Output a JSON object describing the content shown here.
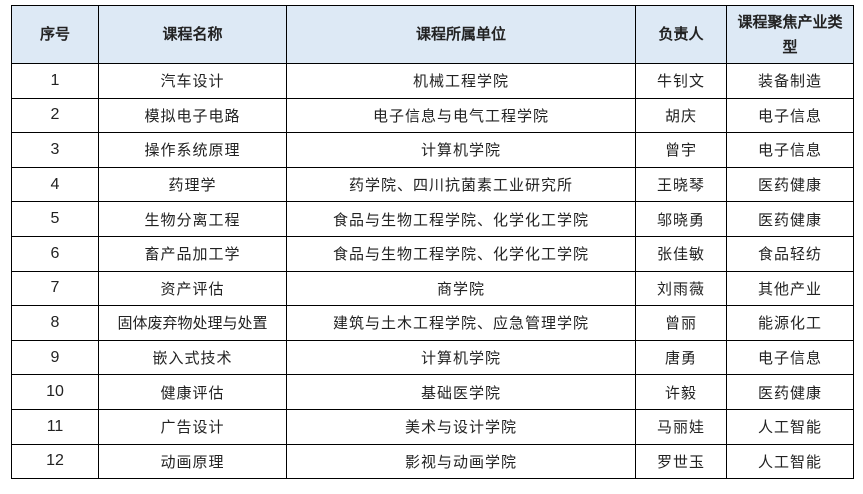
{
  "table": {
    "headers": [
      "序号",
      "课程名称",
      "课程所属单位",
      "负责人",
      "课程聚焦产业类型"
    ],
    "rows": [
      [
        "1",
        "汽车设计",
        "机械工程学院",
        "牛钊文",
        "装备制造"
      ],
      [
        "2",
        "模拟电子电路",
        "电子信息与电气工程学院",
        "胡庆",
        "电子信息"
      ],
      [
        "3",
        "操作系统原理",
        "计算机学院",
        "曾宇",
        "电子信息"
      ],
      [
        "4",
        "药理学",
        "药学院、四川抗菌素工业研究所",
        "王晓琴",
        "医药健康"
      ],
      [
        "5",
        "生物分离工程",
        "食品与生物工程学院、化学化工学院",
        "邬晓勇",
        "医药健康"
      ],
      [
        "6",
        "畜产品加工学",
        "食品与生物工程学院、化学化工学院",
        "张佳敏",
        "食品轻纺"
      ],
      [
        "7",
        "资产评估",
        "商学院",
        "刘雨薇",
        "其他产业"
      ],
      [
        "8",
        "固体废弃物处理与处置",
        "建筑与土木工程学院、应急管理学院",
        "曾丽",
        "能源化工"
      ],
      [
        "9",
        "嵌入式技术",
        "计算机学院",
        "唐勇",
        "电子信息"
      ],
      [
        "10",
        "健康评估",
        "基础医学院",
        "许毅",
        "医药健康"
      ],
      [
        "11",
        "广告设计",
        "美术与设计学院",
        "马丽娃",
        "人工智能"
      ],
      [
        "12",
        "动画原理",
        "影视与动画学院",
        "罗世玉",
        "人工智能"
      ]
    ]
  }
}
